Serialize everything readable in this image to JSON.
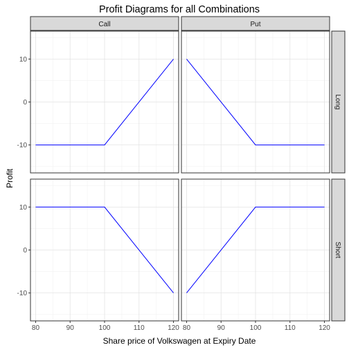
{
  "chart_data": {
    "type": "line",
    "title": "Profit Diagrams for all Combinations",
    "xlabel": "Share price of Volkswagen at Expiry Date",
    "ylabel": "Profit",
    "facet_columns": [
      "Call",
      "Put"
    ],
    "facet_rows": [
      "Long",
      "Short"
    ],
    "xlim": [
      78.5,
      121.5
    ],
    "ylim": [
      -16.5,
      16.5
    ],
    "x_ticks": [
      80,
      90,
      100,
      110,
      120
    ],
    "y_ticks": [
      -10,
      0,
      10
    ],
    "grid": true,
    "line_color": "#0000ff",
    "panels": [
      {
        "row": "Long",
        "col": "Call",
        "x": [
          80,
          100,
          120
        ],
        "y": [
          -10,
          -10,
          10
        ]
      },
      {
        "row": "Long",
        "col": "Put",
        "x": [
          80,
          100,
          120
        ],
        "y": [
          10,
          -10,
          -10
        ]
      },
      {
        "row": "Short",
        "col": "Call",
        "x": [
          80,
          100,
          120
        ],
        "y": [
          10,
          10,
          -10
        ]
      },
      {
        "row": "Short",
        "col": "Put",
        "x": [
          80,
          100,
          120
        ],
        "y": [
          -10,
          10,
          10
        ]
      }
    ]
  }
}
